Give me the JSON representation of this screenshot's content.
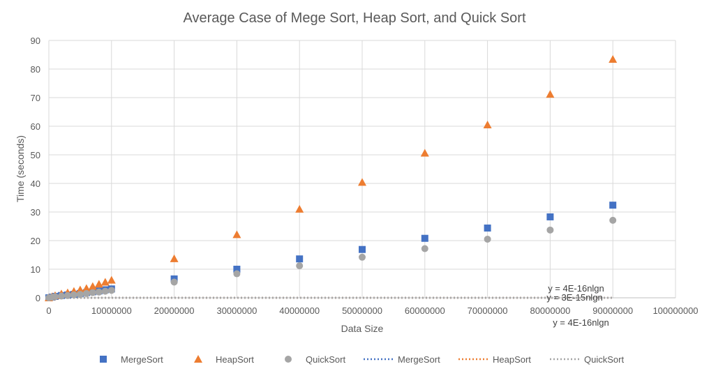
{
  "chart_data": {
    "type": "scatter",
    "title": "Average Case of Mege Sort, Heap Sort, and Quick Sort",
    "xlabel": "Data Size",
    "ylabel": "Time (seconds)",
    "xlim": [
      0,
      100000000
    ],
    "ylim": [
      0,
      90
    ],
    "xticks": [
      0,
      10000000,
      20000000,
      30000000,
      40000000,
      50000000,
      60000000,
      70000000,
      80000000,
      90000000,
      100000000
    ],
    "yticks": [
      0,
      10,
      20,
      30,
      40,
      50,
      60,
      70,
      80,
      90
    ],
    "grid": true,
    "legend_position": "bottom",
    "series": [
      {
        "name": "MergeSort",
        "marker": "square",
        "color": "#4472C4",
        "x": [
          0,
          500000,
          1000000,
          2000000,
          3000000,
          4000000,
          5000000,
          6000000,
          7000000,
          8000000,
          9000000,
          10000000,
          20000000,
          30000000,
          40000000,
          50000000,
          60000000,
          70000000,
          80000000,
          90000000
        ],
        "y": [
          0,
          0.25,
          0.5,
          0.8,
          1.0,
          1.2,
          1.5,
          1.8,
          2.1,
          2.4,
          2.8,
          3.1,
          6.6,
          10.0,
          13.6,
          16.9,
          20.8,
          24.4,
          28.3,
          32.4
        ]
      },
      {
        "name": "HeapSort",
        "marker": "triangle",
        "color": "#ED7D31",
        "x": [
          0,
          500000,
          1000000,
          2000000,
          3000000,
          4000000,
          5000000,
          6000000,
          7000000,
          8000000,
          9000000,
          10000000,
          20000000,
          30000000,
          40000000,
          50000000,
          60000000,
          70000000,
          80000000,
          90000000
        ],
        "y": [
          0,
          0.4,
          0.8,
          1.4,
          1.8,
          2.3,
          2.8,
          3.3,
          4.0,
          4.8,
          5.5,
          6.2,
          13.7,
          22.1,
          31.0,
          40.4,
          50.6,
          60.5,
          71.2,
          83.4
        ]
      },
      {
        "name": "QuickSort",
        "marker": "circle",
        "color": "#A5A5A5",
        "x": [
          0,
          500000,
          1000000,
          2000000,
          3000000,
          4000000,
          5000000,
          6000000,
          7000000,
          8000000,
          9000000,
          10000000,
          20000000,
          30000000,
          40000000,
          50000000,
          60000000,
          70000000,
          80000000,
          90000000
        ],
        "y": [
          0,
          0.2,
          0.4,
          0.6,
          0.8,
          1.0,
          1.2,
          1.5,
          1.8,
          2.0,
          2.3,
          2.6,
          5.5,
          8.4,
          11.2,
          14.2,
          17.2,
          20.5,
          23.7,
          27.1
        ]
      }
    ],
    "trendlines": [
      {
        "name": "MergeSort",
        "series": "MergeSort",
        "color": "#4472C4",
        "coef": 4e-16,
        "label": "y = 4E-16nlgn"
      },
      {
        "name": "HeapSort",
        "series": "HeapSort",
        "color": "#ED7D31",
        "coef": 3e-15,
        "label": "y = 3E-15nlgn"
      },
      {
        "name": "QuickSort",
        "series": "QuickSort",
        "color": "#A5A5A5",
        "coef": 4e-16,
        "label": "y = 4E-16nlgn"
      }
    ]
  }
}
